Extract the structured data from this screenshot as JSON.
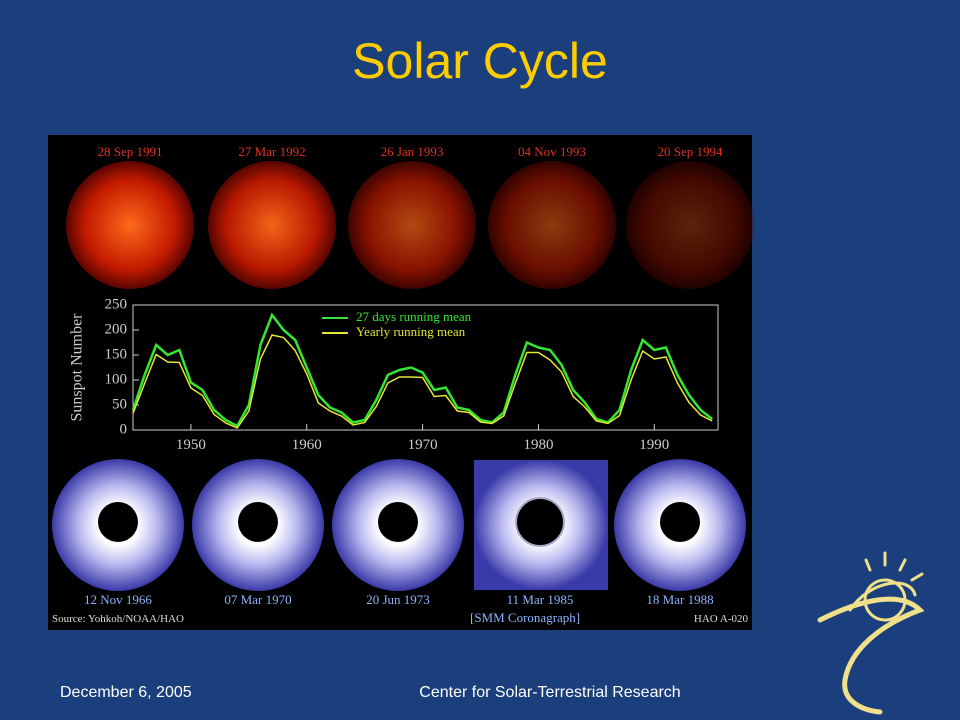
{
  "title": "Solar Cycle",
  "figure": {
    "xray_dates": [
      "28 Sep 1991",
      "27 Mar 1992",
      "26 Jan 1993",
      "04 Nov 1993",
      "20 Sep 1994"
    ],
    "corona_dates": [
      "12 Nov 1966",
      "07 Mar 1970",
      "20 Jun 1973",
      "11 Mar 1985",
      "18 Mar 1988"
    ],
    "source": "Source: Yohkoh/NOAA/HAO",
    "instrument": "[SMM Coronagraph]",
    "figure_id": "HAO A-020"
  },
  "chart_data": {
    "type": "line",
    "y_label": "Sunspot Number",
    "x": [
      1945,
      1946,
      1947,
      1948,
      1949,
      1950,
      1951,
      1952,
      1953,
      1954,
      1955,
      1956,
      1957,
      1958,
      1959,
      1960,
      1961,
      1962,
      1963,
      1964,
      1965,
      1966,
      1967,
      1968,
      1969,
      1970,
      1971,
      1972,
      1973,
      1974,
      1975,
      1976,
      1977,
      1978,
      1979,
      1980,
      1981,
      1982,
      1983,
      1984,
      1985,
      1986,
      1987,
      1988,
      1989,
      1990,
      1991,
      1992,
      1993,
      1994,
      1995
    ],
    "series": [
      {
        "name": "27 days running mean",
        "color": "#33e633",
        "values": [
          40,
          110,
          170,
          150,
          160,
          95,
          80,
          40,
          20,
          8,
          50,
          170,
          230,
          200,
          180,
          125,
          70,
          45,
          35,
          15,
          20,
          60,
          110,
          120,
          125,
          115,
          80,
          85,
          45,
          40,
          20,
          15,
          35,
          110,
          175,
          165,
          160,
          130,
          80,
          55,
          22,
          15,
          40,
          120,
          180,
          160,
          165,
          110,
          70,
          40,
          22
        ]
      },
      {
        "name": "Yearly running mean",
        "color": "#e6e633",
        "values": [
          33,
          93,
          151,
          136,
          135,
          84,
          69,
          31,
          14,
          4,
          38,
          142,
          190,
          185,
          159,
          112,
          54,
          38,
          28,
          10,
          15,
          47,
          94,
          106,
          106,
          105,
          67,
          69,
          38,
          35,
          16,
          13,
          28,
          93,
          155,
          155,
          140,
          116,
          67,
          46,
          18,
          13,
          29,
          100,
          158,
          142,
          146,
          94,
          55,
          30,
          18
        ]
      }
    ],
    "xlim": [
      1945,
      1995.5
    ],
    "xticks": [
      1950,
      1960,
      1970,
      1980,
      1990
    ],
    "ylim": [
      0,
      250
    ],
    "yticks": [
      0,
      50,
      100,
      150,
      200,
      250
    ]
  },
  "footer": {
    "date": "December 6, 2005",
    "organization": "Center for Solar-Terrestrial Research"
  }
}
